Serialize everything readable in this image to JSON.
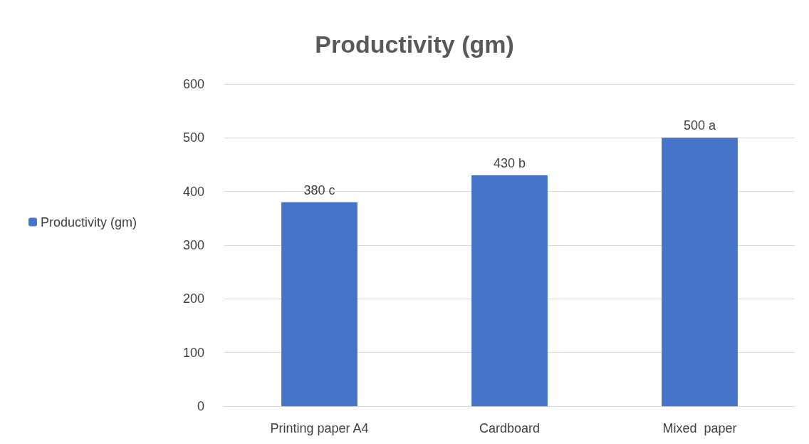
{
  "chart_data": {
    "type": "bar",
    "title": "Productivity (gm)",
    "categories": [
      "Printing paper A4",
      "Cardboard",
      "Mixed  paper"
    ],
    "series": [
      {
        "name": "Productivity (gm)",
        "color": "#4674c8",
        "values": [
          380,
          430,
          500
        ],
        "value_labels": [
          "380 c",
          "430 b",
          "500 a"
        ]
      }
    ],
    "ylim": [
      0,
      600
    ],
    "yticks": [
      0,
      100,
      200,
      300,
      400,
      500,
      600
    ],
    "grid": "y",
    "legend": "left"
  }
}
